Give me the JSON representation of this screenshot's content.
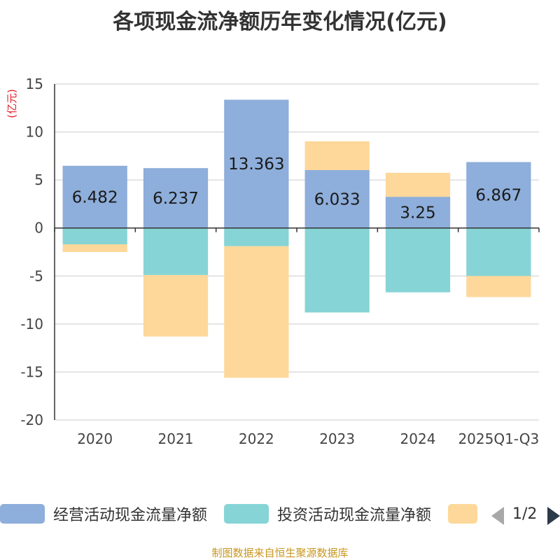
{
  "chart_data": {
    "type": "bar",
    "stacked": true,
    "title": "各项现金流净额历年变化情况(亿元)",
    "ylabel": "(亿元)",
    "xlabel": "",
    "ylim": [
      -20,
      15
    ],
    "yticks": [
      15,
      10,
      5,
      0,
      -5,
      -10,
      -15,
      -20
    ],
    "grid": true,
    "categories": [
      "2020",
      "2021",
      "2022",
      "2023",
      "2024",
      "2025Q1-Q3"
    ],
    "series": [
      {
        "name": "经营活动现金流量净额",
        "color": "#8eaedb",
        "values": [
          6.482,
          6.237,
          13.363,
          6.033,
          3.25,
          6.867
        ],
        "labels": [
          "6.482",
          "6.237",
          "13.363",
          "6.033",
          "3.25",
          "6.867"
        ]
      },
      {
        "name": "投资活动现金流量净额",
        "color": "#86d4d6",
        "values": [
          -1.7,
          -4.9,
          -1.9,
          -8.8,
          -6.7,
          -5.0
        ]
      },
      {
        "name": "",
        "color": "#fdd89a",
        "values": [
          -0.8,
          -6.4,
          -13.7,
          3.0,
          2.5,
          -2.2
        ]
      }
    ]
  },
  "legend": {
    "page": "1/2"
  },
  "footer": "制图数据来自恒生聚源数据库"
}
